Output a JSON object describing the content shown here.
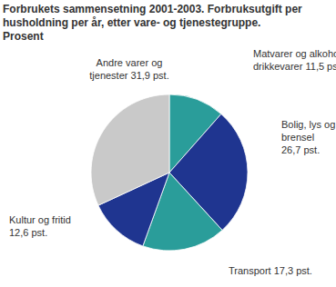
{
  "chart_data": {
    "type": "pie",
    "title": "Forbrukets sammensetning 2001-2003. Forbruksutgift per husholdning per år, etter vare- og tjenestegruppe.",
    "subtitle": "Prosent",
    "categories": [
      "Matvarer og alkoholfrie drikkevarer",
      "Bolig, lys og brensel",
      "Transport",
      "Kultur og fritid",
      "Andre varer og tjenester"
    ],
    "values": [
      11.5,
      26.7,
      17.3,
      12.6,
      31.9
    ],
    "value_labels": [
      "11,5 pst.",
      "26,7 pst.",
      "17,3 pst.",
      "12,6 pst.",
      "31,9 pst."
    ],
    "colors": [
      "#2a9d9a",
      "#1f3590",
      "#2a9d9a",
      "#1f3590",
      "#c9c9c9"
    ],
    "data_labels": true
  }
}
